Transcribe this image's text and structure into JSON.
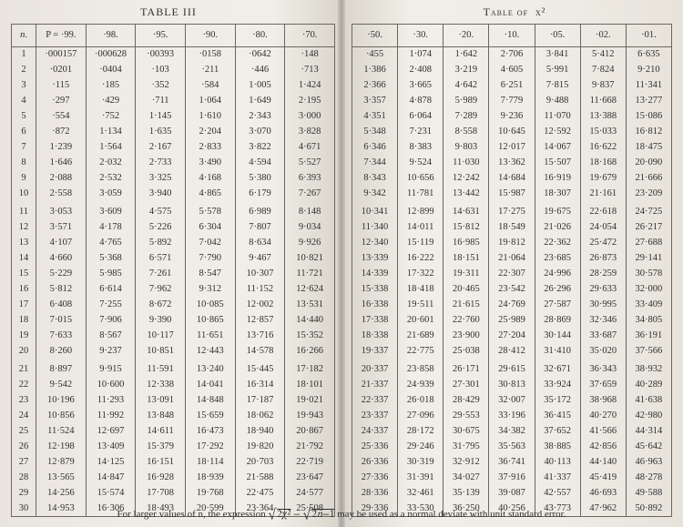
{
  "titles": {
    "left": "TABLE III",
    "right_a": "Table of"
  },
  "footnote": {
    "a": "For larger values of n, the expression ",
    "b": " may be used as a normal deviate with unit standard error."
  },
  "left": {
    "headers": [
      "n.",
      "P = ·99.",
      "·98.",
      "·95.",
      "·90.",
      "·80.",
      "·70."
    ],
    "n": [
      "1",
      "2",
      "3",
      "4",
      "5",
      "6",
      "7",
      "8",
      "9",
      "10",
      "11",
      "12",
      "13",
      "14",
      "15",
      "16",
      "17",
      "18",
      "19",
      "20",
      "21",
      "22",
      "23",
      "24",
      "25",
      "26",
      "27",
      "28",
      "29",
      "30"
    ],
    "cols": [
      [
        "·000157",
        "·0201",
        "·115",
        "·297",
        "·554",
        "·872",
        "1·239",
        "1·646",
        "2·088",
        "2·558",
        "3·053",
        "3·571",
        "4·107",
        "4·660",
        "5·229",
        "5·812",
        "6·408",
        "7·015",
        "7·633",
        "8·260",
        "8·897",
        "9·542",
        "10·196",
        "10·856",
        "11·524",
        "12·198",
        "12·879",
        "13·565",
        "14·256",
        "14·953"
      ],
      [
        "·000628",
        "·0404",
        "·185",
        "·429",
        "·752",
        "1·134",
        "1·564",
        "2·032",
        "2·532",
        "3·059",
        "3·609",
        "4·178",
        "4·765",
        "5·368",
        "5·985",
        "6·614",
        "7·255",
        "7·906",
        "8·567",
        "9·237",
        "9·915",
        "10·600",
        "11·293",
        "11·992",
        "12·697",
        "13·409",
        "14·125",
        "14·847",
        "15·574",
        "16·306"
      ],
      [
        "·00393",
        "·103",
        "·352",
        "·711",
        "1·145",
        "1·635",
        "2·167",
        "2·733",
        "3·325",
        "3·940",
        "4·575",
        "5·226",
        "5·892",
        "6·571",
        "7·261",
        "7·962",
        "8·672",
        "9·390",
        "10·117",
        "10·851",
        "11·591",
        "12·338",
        "13·091",
        "13·848",
        "14·611",
        "15·379",
        "16·151",
        "16·928",
        "17·708",
        "18·493"
      ],
      [
        "·0158",
        "·211",
        "·584",
        "1·064",
        "1·610",
        "2·204",
        "2·833",
        "3·490",
        "4·168",
        "4·865",
        "5·578",
        "6·304",
        "7·042",
        "7·790",
        "8·547",
        "9·312",
        "10·085",
        "10·865",
        "11·651",
        "12·443",
        "13·240",
        "14·041",
        "14·848",
        "15·659",
        "16·473",
        "17·292",
        "18·114",
        "18·939",
        "19·768",
        "20·599"
      ],
      [
        "·0642",
        "·446",
        "1·005",
        "1·649",
        "2·343",
        "3·070",
        "3·822",
        "4·594",
        "5·380",
        "6·179",
        "6·989",
        "7·807",
        "8·634",
        "9·467",
        "10·307",
        "11·152",
        "12·002",
        "12·857",
        "13·716",
        "14·578",
        "15·445",
        "16·314",
        "17·187",
        "18·062",
        "18·940",
        "19·820",
        "20·703",
        "21·588",
        "22·475",
        "23·364"
      ],
      [
        "·148",
        "·713",
        "1·424",
        "2·195",
        "3·000",
        "3·828",
        "4·671",
        "5·527",
        "6·393",
        "7·267",
        "8·148",
        "9·034",
        "9·926",
        "10·821",
        "11·721",
        "12·624",
        "13·531",
        "14·440",
        "15·352",
        "16·266",
        "17·182",
        "18·101",
        "19·021",
        "19·943",
        "20·867",
        "21·792",
        "22·719",
        "23·647",
        "24·577",
        "25·508"
      ]
    ]
  },
  "right": {
    "headers": [
      "·50.",
      "·30.",
      "·20.",
      "·10.",
      "·05.",
      "·02.",
      "·01."
    ],
    "cols": [
      [
        "·455",
        "1·386",
        "2·366",
        "3·357",
        "4·351",
        "5·348",
        "6·346",
        "7·344",
        "8·343",
        "9·342",
        "10·341",
        "11·340",
        "12·340",
        "13·339",
        "14·339",
        "15·338",
        "16·338",
        "17·338",
        "18·338",
        "19·337",
        "20·337",
        "21·337",
        "22·337",
        "23·337",
        "24·337",
        "25·336",
        "26·336",
        "27·336",
        "28·336",
        "29·336"
      ],
      [
        "1·074",
        "2·408",
        "3·665",
        "4·878",
        "6·064",
        "7·231",
        "8·383",
        "9·524",
        "10·656",
        "11·781",
        "12·899",
        "14·011",
        "15·119",
        "16·222",
        "17·322",
        "18·418",
        "19·511",
        "20·601",
        "21·689",
        "22·775",
        "23·858",
        "24·939",
        "26·018",
        "27·096",
        "28·172",
        "29·246",
        "30·319",
        "31·391",
        "32·461",
        "33·530"
      ],
      [
        "1·642",
        "3·219",
        "4·642",
        "5·989",
        "7·289",
        "8·558",
        "9·803",
        "11·030",
        "12·242",
        "13·442",
        "14·631",
        "15·812",
        "16·985",
        "18·151",
        "19·311",
        "20·465",
        "21·615",
        "22·760",
        "23·900",
        "25·038",
        "26·171",
        "27·301",
        "28·429",
        "29·553",
        "30·675",
        "31·795",
        "32·912",
        "34·027",
        "35·139",
        "36·250"
      ],
      [
        "2·706",
        "4·605",
        "6·251",
        "7·779",
        "9·236",
        "10·645",
        "12·017",
        "13·362",
        "14·684",
        "15·987",
        "17·275",
        "18·549",
        "19·812",
        "21·064",
        "22·307",
        "23·542",
        "24·769",
        "25·989",
        "27·204",
        "28·412",
        "29·615",
        "30·813",
        "32·007",
        "33·196",
        "34·382",
        "35·563",
        "36·741",
        "37·916",
        "39·087",
        "40·256"
      ],
      [
        "3·841",
        "5·991",
        "7·815",
        "9·488",
        "11·070",
        "12·592",
        "14·067",
        "15·507",
        "16·919",
        "18·307",
        "19·675",
        "21·026",
        "22·362",
        "23·685",
        "24·996",
        "26·296",
        "27·587",
        "28·869",
        "30·144",
        "31·410",
        "32·671",
        "33·924",
        "35·172",
        "36·415",
        "37·652",
        "38·885",
        "40·113",
        "41·337",
        "42·557",
        "43·773"
      ],
      [
        "5·412",
        "7·824",
        "9·837",
        "11·668",
        "13·388",
        "15·033",
        "16·622",
        "18·168",
        "19·679",
        "21·161",
        "22·618",
        "24·054",
        "25·472",
        "26·873",
        "28·259",
        "29·633",
        "30·995",
        "32·346",
        "33·687",
        "35·020",
        "36·343",
        "37·659",
        "38·968",
        "40·270",
        "41·566",
        "42·856",
        "44·140",
        "45·419",
        "46·693",
        "47·962"
      ],
      [
        "6·635",
        "9·210",
        "11·341",
        "13·277",
        "15·086",
        "16·812",
        "18·475",
        "20·090",
        "21·666",
        "23·209",
        "24·725",
        "26·217",
        "27·688",
        "29·141",
        "30·578",
        "32·000",
        "33·409",
        "34·805",
        "36·191",
        "37·566",
        "38·932",
        "40·289",
        "41·638",
        "42·980",
        "44·314",
        "45·642",
        "46·963",
        "48·278",
        "49·588",
        "50·892"
      ]
    ]
  }
}
